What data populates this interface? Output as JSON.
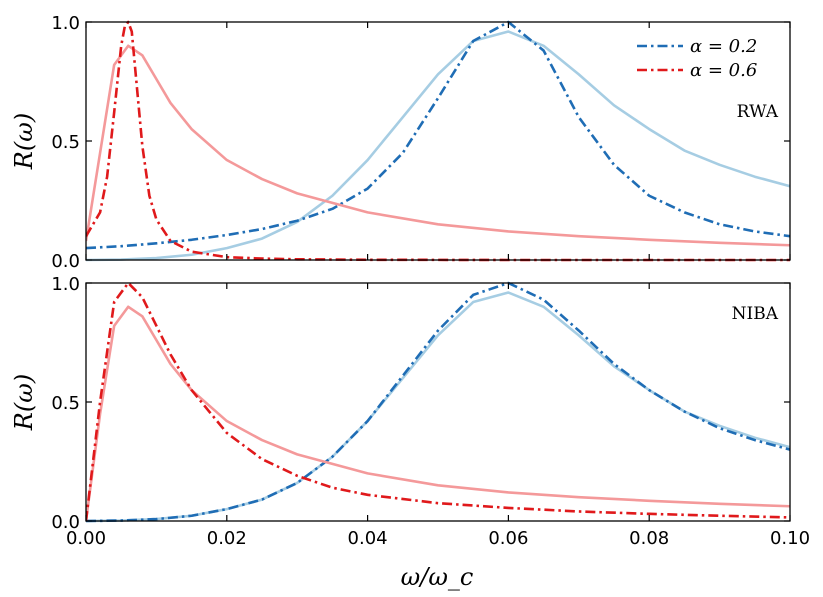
{
  "chart_data": {
    "type": "line",
    "xlabel": "ω/ω_c",
    "xlim": [
      0.0,
      0.1
    ],
    "xticks": [
      "0.00",
      "0.02",
      "0.04",
      "0.06",
      "0.08",
      "0.10"
    ],
    "ylim": [
      0.0,
      1.0
    ],
    "yticks": [
      "0.0",
      "0.5",
      "1.0"
    ],
    "legend": {
      "placement": "top-right",
      "entries": [
        {
          "label": "α = 0.2",
          "color": "#1f6db5",
          "style": "dash-dot"
        },
        {
          "label": "α = 0.6",
          "color": "#e0191b",
          "style": "dash-dot"
        }
      ]
    },
    "panels": [
      {
        "label": "RWA",
        "ylabel": "R(ω)",
        "series": [
          {
            "name": "α=0.2 exact",
            "color": "#a6cde3",
            "style": "solid",
            "x": [
              0.0,
              0.005,
              0.01,
              0.015,
              0.02,
              0.025,
              0.03,
              0.035,
              0.04,
              0.045,
              0.05,
              0.055,
              0.06,
              0.065,
              0.07,
              0.075,
              0.08,
              0.085,
              0.09,
              0.095,
              0.1
            ],
            "y": [
              0.0,
              0.002,
              0.008,
              0.022,
              0.05,
              0.09,
              0.16,
              0.27,
              0.42,
              0.6,
              0.78,
              0.92,
              0.96,
              0.9,
              0.78,
              0.65,
              0.55,
              0.46,
              0.4,
              0.35,
              0.31
            ]
          },
          {
            "name": "α=0.2 approx",
            "color": "#1f6db5",
            "style": "dash-dot",
            "x": [
              0.0,
              0.005,
              0.01,
              0.015,
              0.02,
              0.025,
              0.03,
              0.035,
              0.04,
              0.045,
              0.05,
              0.055,
              0.06,
              0.065,
              0.07,
              0.075,
              0.08,
              0.085,
              0.09,
              0.095,
              0.1
            ],
            "y": [
              0.05,
              0.058,
              0.07,
              0.085,
              0.105,
              0.13,
              0.165,
              0.215,
              0.3,
              0.45,
              0.68,
              0.92,
              1.0,
              0.88,
              0.6,
              0.4,
              0.27,
              0.2,
              0.15,
              0.12,
              0.1
            ]
          },
          {
            "name": "α=0.6 exact",
            "color": "#f4999a",
            "style": "solid",
            "x": [
              0.0,
              0.002,
              0.004,
              0.006,
              0.008,
              0.01,
              0.012,
              0.015,
              0.02,
              0.025,
              0.03,
              0.035,
              0.04,
              0.05,
              0.06,
              0.07,
              0.08,
              0.09,
              0.1
            ],
            "y": [
              0.08,
              0.45,
              0.82,
              0.9,
              0.86,
              0.76,
              0.66,
              0.55,
              0.42,
              0.34,
              0.28,
              0.24,
              0.2,
              0.15,
              0.12,
              0.1,
              0.085,
              0.072,
              0.062
            ]
          },
          {
            "name": "α=0.6 approx",
            "color": "#e0191b",
            "style": "dash-dot",
            "x": [
              0.0,
              0.002,
              0.003,
              0.004,
              0.005,
              0.0055,
              0.006,
              0.0065,
              0.007,
              0.008,
              0.009,
              0.01,
              0.012,
              0.015,
              0.02,
              0.025,
              0.03,
              0.04,
              0.06,
              0.08,
              0.1
            ],
            "y": [
              0.1,
              0.2,
              0.35,
              0.62,
              0.9,
              0.98,
              1.0,
              0.96,
              0.8,
              0.48,
              0.27,
              0.17,
              0.08,
              0.035,
              0.012,
              0.006,
              0.003,
              0.001,
              0.0,
              0.0,
              0.0
            ]
          }
        ]
      },
      {
        "label": "NIBA",
        "ylabel": "R(ω)",
        "series": [
          {
            "name": "α=0.2 exact",
            "color": "#a6cde3",
            "style": "solid",
            "x": [
              0.0,
              0.005,
              0.01,
              0.015,
              0.02,
              0.025,
              0.03,
              0.035,
              0.04,
              0.045,
              0.05,
              0.055,
              0.06,
              0.065,
              0.07,
              0.075,
              0.08,
              0.085,
              0.09,
              0.095,
              0.1
            ],
            "y": [
              0.0,
              0.002,
              0.008,
              0.022,
              0.05,
              0.09,
              0.16,
              0.27,
              0.42,
              0.6,
              0.78,
              0.92,
              0.96,
              0.9,
              0.78,
              0.65,
              0.55,
              0.46,
              0.4,
              0.35,
              0.31
            ]
          },
          {
            "name": "α=0.2 approx",
            "color": "#1f6db5",
            "style": "dash-dot",
            "x": [
              0.0,
              0.005,
              0.01,
              0.015,
              0.02,
              0.025,
              0.03,
              0.035,
              0.04,
              0.045,
              0.05,
              0.055,
              0.06,
              0.065,
              0.07,
              0.075,
              0.08,
              0.085,
              0.09,
              0.095,
              0.1
            ],
            "y": [
              0.0,
              0.002,
              0.008,
              0.022,
              0.05,
              0.09,
              0.16,
              0.27,
              0.42,
              0.61,
              0.8,
              0.95,
              1.0,
              0.93,
              0.8,
              0.66,
              0.55,
              0.46,
              0.39,
              0.34,
              0.3
            ]
          },
          {
            "name": "α=0.6 exact",
            "color": "#f4999a",
            "style": "solid",
            "x": [
              0.0,
              0.002,
              0.004,
              0.006,
              0.008,
              0.01,
              0.012,
              0.015,
              0.02,
              0.025,
              0.03,
              0.035,
              0.04,
              0.05,
              0.06,
              0.07,
              0.08,
              0.09,
              0.1
            ],
            "y": [
              0.0,
              0.45,
              0.82,
              0.9,
              0.86,
              0.76,
              0.66,
              0.55,
              0.42,
              0.34,
              0.28,
              0.24,
              0.2,
              0.15,
              0.12,
              0.1,
              0.085,
              0.072,
              0.062
            ]
          },
          {
            "name": "α=0.6 approx",
            "color": "#e0191b",
            "style": "dash-dot",
            "x": [
              0.0,
              0.002,
              0.004,
              0.006,
              0.008,
              0.01,
              0.012,
              0.015,
              0.02,
              0.025,
              0.03,
              0.035,
              0.04,
              0.05,
              0.06,
              0.07,
              0.08,
              0.09,
              0.1
            ],
            "y": [
              0.0,
              0.5,
              0.92,
              1.0,
              0.94,
              0.82,
              0.7,
              0.55,
              0.37,
              0.26,
              0.19,
              0.14,
              0.11,
              0.075,
              0.055,
              0.04,
              0.03,
              0.022,
              0.015
            ]
          }
        ]
      }
    ]
  }
}
